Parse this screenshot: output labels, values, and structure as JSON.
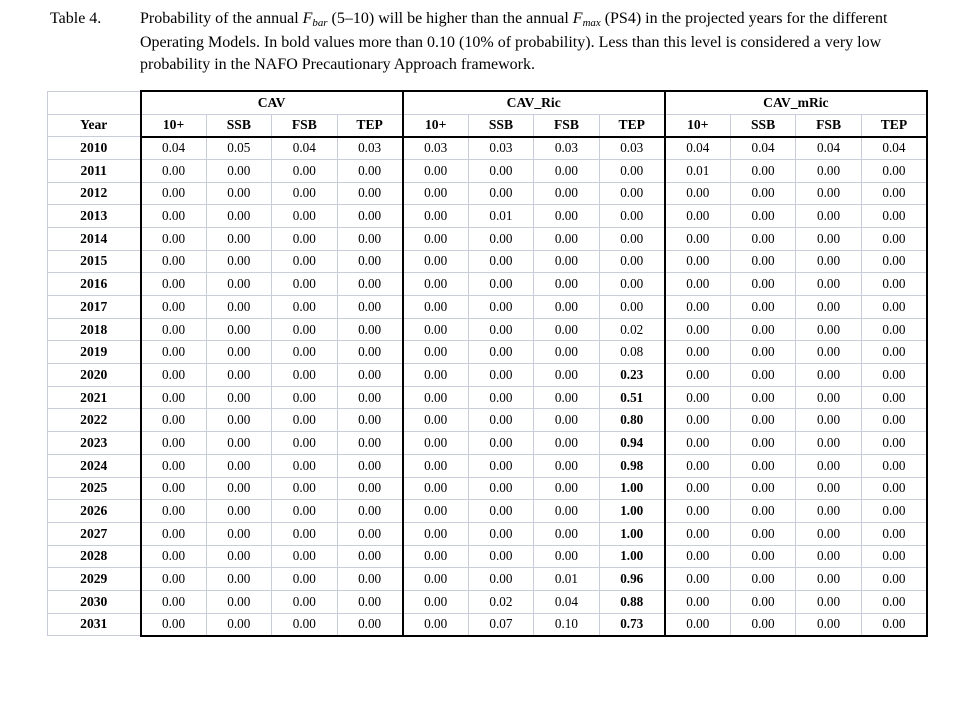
{
  "caption": {
    "label": "Table 4.",
    "segments": [
      {
        "text": "Probability of the annual ",
        "style": "normal"
      },
      {
        "text": "F",
        "style": "italic"
      },
      {
        "text": "bar",
        "style": "subscript"
      },
      {
        "text": " (5–10) will be higher than the annual ",
        "style": "normal"
      },
      {
        "text": "F",
        "style": "italic"
      },
      {
        "text": "max",
        "style": "subscript"
      },
      {
        "text": " (PS4) in the projected years for the different Operating Models. In bold values more than 0.10 (10% of probability). Less than this level is considered a very low probability in the NAFO Precautionary Approach framework.",
        "style": "normal"
      }
    ]
  },
  "table": {
    "year_header": "Year",
    "groups": [
      {
        "name": "CAV",
        "columns": [
          "10+",
          "SSB",
          "FSB",
          "TEP"
        ]
      },
      {
        "name": "CAV_Ric",
        "columns": [
          "10+",
          "SSB",
          "FSB",
          "TEP"
        ]
      },
      {
        "name": "CAV_mRic",
        "columns": [
          "10+",
          "SSB",
          "FSB",
          "TEP"
        ]
      }
    ],
    "bold_threshold": 0.1,
    "rows": [
      {
        "year": "2010",
        "values": [
          "0.04",
          "0.05",
          "0.04",
          "0.03",
          "0.03",
          "0.03",
          "0.03",
          "0.03",
          "0.04",
          "0.04",
          "0.04",
          "0.04"
        ]
      },
      {
        "year": "2011",
        "values": [
          "0.00",
          "0.00",
          "0.00",
          "0.00",
          "0.00",
          "0.00",
          "0.00",
          "0.00",
          "0.01",
          "0.00",
          "0.00",
          "0.00"
        ]
      },
      {
        "year": "2012",
        "values": [
          "0.00",
          "0.00",
          "0.00",
          "0.00",
          "0.00",
          "0.00",
          "0.00",
          "0.00",
          "0.00",
          "0.00",
          "0.00",
          "0.00"
        ]
      },
      {
        "year": "2013",
        "values": [
          "0.00",
          "0.00",
          "0.00",
          "0.00",
          "0.00",
          "0.01",
          "0.00",
          "0.00",
          "0.00",
          "0.00",
          "0.00",
          "0.00"
        ]
      },
      {
        "year": "2014",
        "values": [
          "0.00",
          "0.00",
          "0.00",
          "0.00",
          "0.00",
          "0.00",
          "0.00",
          "0.00",
          "0.00",
          "0.00",
          "0.00",
          "0.00"
        ]
      },
      {
        "year": "2015",
        "values": [
          "0.00",
          "0.00",
          "0.00",
          "0.00",
          "0.00",
          "0.00",
          "0.00",
          "0.00",
          "0.00",
          "0.00",
          "0.00",
          "0.00"
        ]
      },
      {
        "year": "2016",
        "values": [
          "0.00",
          "0.00",
          "0.00",
          "0.00",
          "0.00",
          "0.00",
          "0.00",
          "0.00",
          "0.00",
          "0.00",
          "0.00",
          "0.00"
        ]
      },
      {
        "year": "2017",
        "values": [
          "0.00",
          "0.00",
          "0.00",
          "0.00",
          "0.00",
          "0.00",
          "0.00",
          "0.00",
          "0.00",
          "0.00",
          "0.00",
          "0.00"
        ]
      },
      {
        "year": "2018",
        "values": [
          "0.00",
          "0.00",
          "0.00",
          "0.00",
          "0.00",
          "0.00",
          "0.00",
          "0.02",
          "0.00",
          "0.00",
          "0.00",
          "0.00"
        ]
      },
      {
        "year": "2019",
        "values": [
          "0.00",
          "0.00",
          "0.00",
          "0.00",
          "0.00",
          "0.00",
          "0.00",
          "0.08",
          "0.00",
          "0.00",
          "0.00",
          "0.00"
        ]
      },
      {
        "year": "2020",
        "values": [
          "0.00",
          "0.00",
          "0.00",
          "0.00",
          "0.00",
          "0.00",
          "0.00",
          "0.23",
          "0.00",
          "0.00",
          "0.00",
          "0.00"
        ]
      },
      {
        "year": "2021",
        "values": [
          "0.00",
          "0.00",
          "0.00",
          "0.00",
          "0.00",
          "0.00",
          "0.00",
          "0.51",
          "0.00",
          "0.00",
          "0.00",
          "0.00"
        ]
      },
      {
        "year": "2022",
        "values": [
          "0.00",
          "0.00",
          "0.00",
          "0.00",
          "0.00",
          "0.00",
          "0.00",
          "0.80",
          "0.00",
          "0.00",
          "0.00",
          "0.00"
        ]
      },
      {
        "year": "2023",
        "values": [
          "0.00",
          "0.00",
          "0.00",
          "0.00",
          "0.00",
          "0.00",
          "0.00",
          "0.94",
          "0.00",
          "0.00",
          "0.00",
          "0.00"
        ]
      },
      {
        "year": "2024",
        "values": [
          "0.00",
          "0.00",
          "0.00",
          "0.00",
          "0.00",
          "0.00",
          "0.00",
          "0.98",
          "0.00",
          "0.00",
          "0.00",
          "0.00"
        ]
      },
      {
        "year": "2025",
        "values": [
          "0.00",
          "0.00",
          "0.00",
          "0.00",
          "0.00",
          "0.00",
          "0.00",
          "1.00",
          "0.00",
          "0.00",
          "0.00",
          "0.00"
        ]
      },
      {
        "year": "2026",
        "values": [
          "0.00",
          "0.00",
          "0.00",
          "0.00",
          "0.00",
          "0.00",
          "0.00",
          "1.00",
          "0.00",
          "0.00",
          "0.00",
          "0.00"
        ]
      },
      {
        "year": "2027",
        "values": [
          "0.00",
          "0.00",
          "0.00",
          "0.00",
          "0.00",
          "0.00",
          "0.00",
          "1.00",
          "0.00",
          "0.00",
          "0.00",
          "0.00"
        ]
      },
      {
        "year": "2028",
        "values": [
          "0.00",
          "0.00",
          "0.00",
          "0.00",
          "0.00",
          "0.00",
          "0.00",
          "1.00",
          "0.00",
          "0.00",
          "0.00",
          "0.00"
        ]
      },
      {
        "year": "2029",
        "values": [
          "0.00",
          "0.00",
          "0.00",
          "0.00",
          "0.00",
          "0.00",
          "0.01",
          "0.96",
          "0.00",
          "0.00",
          "0.00",
          "0.00"
        ]
      },
      {
        "year": "2030",
        "values": [
          "0.00",
          "0.00",
          "0.00",
          "0.00",
          "0.00",
          "0.02",
          "0.04",
          "0.88",
          "0.00",
          "0.00",
          "0.00",
          "0.00"
        ]
      },
      {
        "year": "2031",
        "values": [
          "0.00",
          "0.00",
          "0.00",
          "0.00",
          "0.00",
          "0.07",
          "0.10",
          "0.73",
          "0.00",
          "0.00",
          "0.00",
          "0.00"
        ]
      }
    ]
  },
  "colors": {
    "page_bg": "#ffffff",
    "text": "#000000",
    "grid_line": "#c9cdd9",
    "heavy_border": "#000000"
  }
}
